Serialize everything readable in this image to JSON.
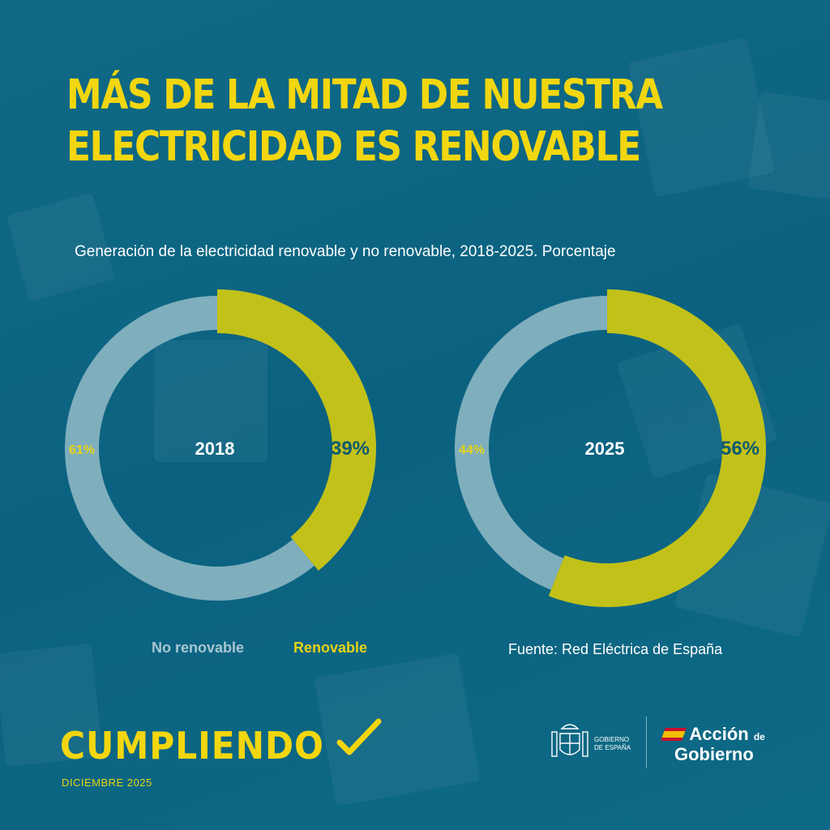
{
  "title_line1": "MÁS DE LA MITAD DE NUESTRA",
  "title_line2": "ELECTRICIDAD ES RENOVABLE",
  "colors": {
    "background": "#0e6480",
    "renewable": "#c2c11a",
    "non_renewable": "#7faebd",
    "accent_yellow": "#f2d60f"
  },
  "chart_data": {
    "type": "pie",
    "title": "Generación de la electricidad renovable y no renovable, 2018-2025. Porcentaje",
    "legend": [
      "No renovable",
      "Renovable"
    ],
    "legend_position": "bottom-left",
    "source": "Fuente: Red Eléctrica de España",
    "donuts": [
      {
        "year": "2018",
        "renovable": 39,
        "no_renovable": 61,
        "renovable_label": "39%",
        "no_renovable_label": "61%"
      },
      {
        "year": "2025",
        "renovable": 56,
        "no_renovable": 44,
        "renovable_label": "56%",
        "no_renovable_label": "44%"
      }
    ]
  },
  "footer": {
    "brand": "CUMPLIENDO",
    "date": "DICIEMBRE 2025",
    "gov_line1": "GOBIERNO",
    "gov_line2": "DE ESPAÑA",
    "accion_line1": "Acción",
    "accion_de": "de",
    "accion_line2": "Gobierno"
  }
}
